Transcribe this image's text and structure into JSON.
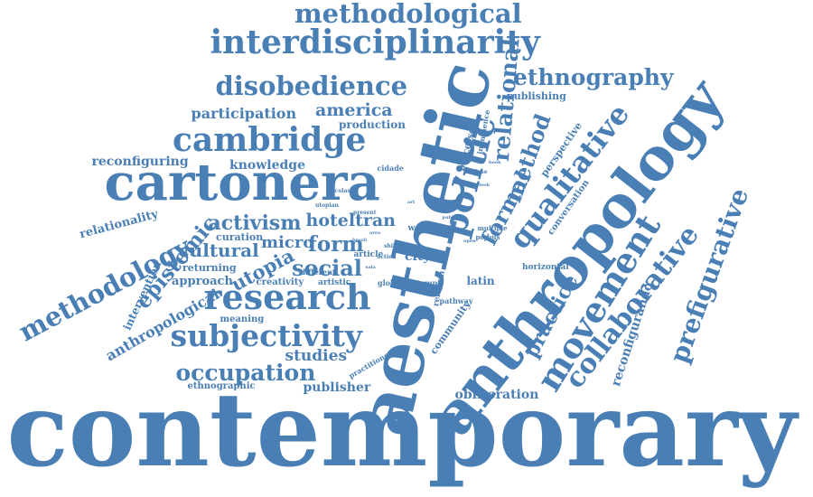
{
  "color": "#4a7fb5",
  "words": [
    {
      "text": "contemporary"
    },
    {
      "text": "aesthetic"
    },
    {
      "text": "anthropology"
    },
    {
      "text": "cartonera"
    },
    {
      "text": "interdisciplinarity"
    },
    {
      "text": "methodological"
    },
    {
      "text": "cambridge"
    },
    {
      "text": "disobedience"
    },
    {
      "text": "research"
    },
    {
      "text": "subjectivity"
    },
    {
      "text": "movement"
    },
    {
      "text": "qualitative"
    },
    {
      "text": "collaborative"
    },
    {
      "text": "prefigurative"
    },
    {
      "text": "ethnography"
    },
    {
      "text": "methodology"
    },
    {
      "text": "occupation"
    },
    {
      "text": "politic"
    },
    {
      "text": "relational"
    },
    {
      "text": "method"
    },
    {
      "text": "formal"
    },
    {
      "text": "practice"
    },
    {
      "text": "activism"
    },
    {
      "text": "social"
    },
    {
      "text": "epistemic"
    },
    {
      "text": "cultural"
    },
    {
      "text": "utopia"
    },
    {
      "text": "form"
    },
    {
      "text": "hoteltran"
    },
    {
      "text": "america"
    },
    {
      "text": "participation"
    },
    {
      "text": "micro"
    },
    {
      "text": "studies"
    },
    {
      "text": "anthropological"
    },
    {
      "text": "knowledge"
    },
    {
      "text": "reconfiguring"
    },
    {
      "text": "reconfigurando"
    },
    {
      "text": "relationality"
    },
    {
      "text": "publisher"
    },
    {
      "text": "obliteration"
    },
    {
      "text": "production"
    },
    {
      "text": "publishing"
    },
    {
      "text": "approach"
    },
    {
      "text": "curation"
    },
    {
      "text": "returning"
    },
    {
      "text": "intervention"
    },
    {
      "text": "creativity"
    },
    {
      "text": "meaning"
    },
    {
      "text": "ethnographic"
    },
    {
      "text": "artistic"
    },
    {
      "text": "different"
    },
    {
      "text": "latin"
    },
    {
      "text": "city"
    },
    {
      "text": "horizontal"
    },
    {
      "text": "perspective"
    },
    {
      "text": "conversation"
    },
    {
      "text": "community"
    },
    {
      "text": "processes"
    },
    {
      "text": "imminence"
    },
    {
      "text": "practitioner"
    },
    {
      "text": "relation"
    },
    {
      "text": "pathway"
    },
    {
      "text": "cidade"
    },
    {
      "text": "article"
    },
    {
      "text": "work"
    },
    {
      "text": "global"
    },
    {
      "text": "attempt"
    },
    {
      "text": "multiple"
    },
    {
      "text": "porous"
    },
    {
      "text": "shifting"
    },
    {
      "text": "action"
    },
    {
      "text": "nicolas"
    },
    {
      "text": "utopian"
    },
    {
      "text": "present"
    },
    {
      "text": "activist"
    },
    {
      "text": "analyse"
    },
    {
      "text": "arte"
    },
    {
      "text": "area"
    },
    {
      "text": "art"
    },
    {
      "text": "new"
    },
    {
      "text": "look"
    },
    {
      "text": "sala"
    },
    {
      "text": "public"
    },
    {
      "text": "brazil"
    },
    {
      "text": "open"
    },
    {
      "text": "book"
    }
  ]
}
